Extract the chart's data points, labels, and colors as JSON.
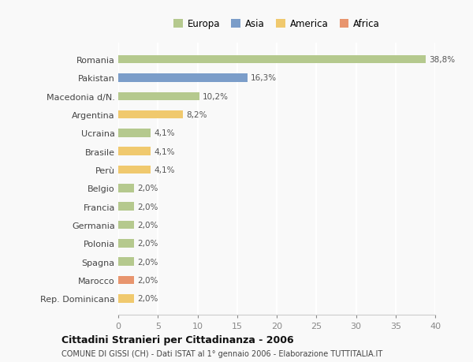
{
  "categories": [
    "Romania",
    "Pakistan",
    "Macedonia d/N.",
    "Argentina",
    "Ucraina",
    "Brasile",
    "Perù",
    "Belgio",
    "Francia",
    "Germania",
    "Polonia",
    "Spagna",
    "Marocco",
    "Rep. Dominicana"
  ],
  "values": [
    38.8,
    16.3,
    10.2,
    8.2,
    4.1,
    4.1,
    4.1,
    2.0,
    2.0,
    2.0,
    2.0,
    2.0,
    2.0,
    2.0
  ],
  "labels": [
    "38,8%",
    "16,3%",
    "10,2%",
    "8,2%",
    "4,1%",
    "4,1%",
    "4,1%",
    "2,0%",
    "2,0%",
    "2,0%",
    "2,0%",
    "2,0%",
    "2,0%",
    "2,0%"
  ],
  "colors": [
    "#b5c98e",
    "#7b9dc9",
    "#b5c98e",
    "#f0c96e",
    "#b5c98e",
    "#f0c96e",
    "#f0c96e",
    "#b5c98e",
    "#b5c98e",
    "#b5c98e",
    "#b5c98e",
    "#b5c98e",
    "#e8956e",
    "#f0c96e"
  ],
  "legend_labels": [
    "Europa",
    "Asia",
    "America",
    "Africa"
  ],
  "legend_colors": [
    "#b5c98e",
    "#7b9dc9",
    "#f0c96e",
    "#e8956e"
  ],
  "xlim": [
    0,
    40
  ],
  "xticks": [
    0,
    5,
    10,
    15,
    20,
    25,
    30,
    35,
    40
  ],
  "title": "Cittadini Stranieri per Cittadinanza - 2006",
  "subtitle": "COMUNE DI GISSI (CH) - Dati ISTAT al 1° gennaio 2006 - Elaborazione TUTTITALIA.IT",
  "bg_color": "#f9f9f9",
  "grid_color": "#ffffff",
  "bar_height": 0.45
}
